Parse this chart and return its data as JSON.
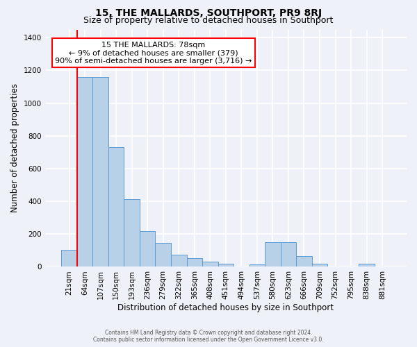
{
  "title": "15, THE MALLARDS, SOUTHPORT, PR9 8RJ",
  "subtitle": "Size of property relative to detached houses in Southport",
  "xlabel": "Distribution of detached houses by size in Southport",
  "ylabel": "Number of detached properties",
  "bar_labels": [
    "21sqm",
    "64sqm",
    "107sqm",
    "150sqm",
    "193sqm",
    "236sqm",
    "279sqm",
    "322sqm",
    "365sqm",
    "408sqm",
    "451sqm",
    "494sqm",
    "537sqm",
    "580sqm",
    "623sqm",
    "666sqm",
    "709sqm",
    "752sqm",
    "795sqm",
    "838sqm",
    "881sqm"
  ],
  "bar_values": [
    105,
    1160,
    1160,
    730,
    415,
    220,
    145,
    75,
    52,
    30,
    17,
    0,
    15,
    150,
    150,
    65,
    18,
    0,
    0,
    18,
    0
  ],
  "bar_color": "#b8d0e8",
  "bar_edge_color": "#5b9bd5",
  "vline_x_index": 1,
  "vline_color": "red",
  "ylim": [
    0,
    1450
  ],
  "yticks": [
    0,
    200,
    400,
    600,
    800,
    1000,
    1200,
    1400
  ],
  "annotation_title": "15 THE MALLARDS: 78sqm",
  "annotation_line1": "← 9% of detached houses are smaller (379)",
  "annotation_line2": "90% of semi-detached houses are larger (3,716) →",
  "annotation_box_color": "#ffffff",
  "annotation_box_edge": "red",
  "footer1": "Contains HM Land Registry data © Crown copyright and database right 2024.",
  "footer2": "Contains public sector information licensed under the Open Government Licence v3.0.",
  "bg_color": "#eef2f8",
  "plot_bg_color": "#eef2f8",
  "grid_color": "#ffffff",
  "title_fontsize": 10,
  "subtitle_fontsize": 9,
  "axis_label_fontsize": 8.5,
  "tick_fontsize": 7.5,
  "annotation_fontsize": 8
}
